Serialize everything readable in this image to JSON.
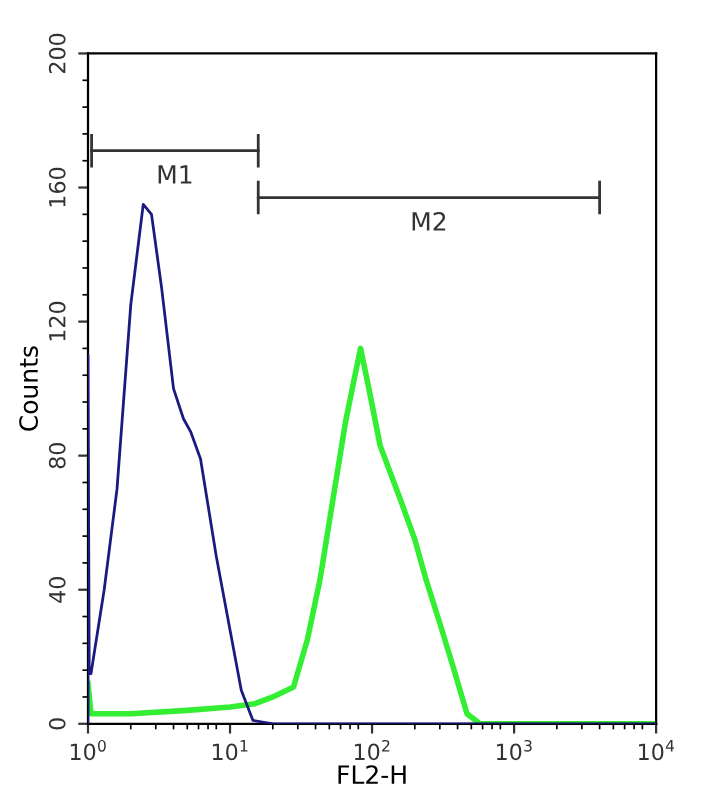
{
  "chart_data": {
    "type": "line",
    "xlabel": "FL2-H",
    "ylabel": "Counts",
    "log": "x",
    "xlim": [
      1,
      10000
    ],
    "ylim": [
      0,
      200
    ],
    "xticks": [
      {
        "value": 1,
        "label": "10$^{0}$"
      },
      {
        "value": 10,
        "label": "10$^{1}$"
      },
      {
        "value": 100,
        "label": "10$^{2}$"
      },
      {
        "value": 1000,
        "label": "10$^{3}$"
      },
      {
        "value": 10000,
        "label": "10$^{4}$"
      }
    ],
    "yticks": [
      0,
      40,
      80,
      120,
      160,
      200
    ],
    "grid": false,
    "marker": "none",
    "line_style": "solid",
    "series": [
      {
        "name": "M1",
        "color": "#333333",
        "x": [
          1.06,
          15.8
        ],
        "values": [
          171,
          171
        ],
        "errors": [
          5,
          5
        ]
      },
      {
        "name": "M2",
        "color": "#333333",
        "x": [
          15.8,
          4000
        ],
        "values": [
          157,
          157
        ],
        "errors": [
          5,
          5
        ]
      },
      {
        "color": "#1a1a80",
        "x": [
          1,
          1,
          1.02,
          1.05,
          1.3,
          1.6,
          2.0,
          2.45,
          2.8,
          3.3,
          4.0,
          4.7,
          5.3,
          6.2,
          8,
          10,
          12,
          14.5,
          20,
          100,
          1000,
          10000
        ],
        "values": [
          0,
          110,
          15,
          15,
          40,
          70,
          125,
          155,
          152,
          130,
          100,
          91,
          87,
          79,
          50,
          28,
          10,
          1,
          0,
          0,
          0,
          0
        ]
      },
      {
        "color": "#33ee33",
        "x": [
          1,
          1.05,
          2,
          5,
          10,
          15,
          20,
          28,
          35,
          43,
          54,
          65,
          75,
          83,
          95,
          114,
          158,
          200,
          240,
          300,
          372,
          466,
          575,
          1000,
          10000
        ],
        "values": [
          12,
          3,
          3,
          4,
          5,
          6,
          8,
          11,
          25,
          43,
          69,
          90,
          103,
          112,
          100,
          83,
          67,
          55,
          43,
          30,
          17,
          3,
          0,
          0,
          0
        ]
      }
    ]
  }
}
